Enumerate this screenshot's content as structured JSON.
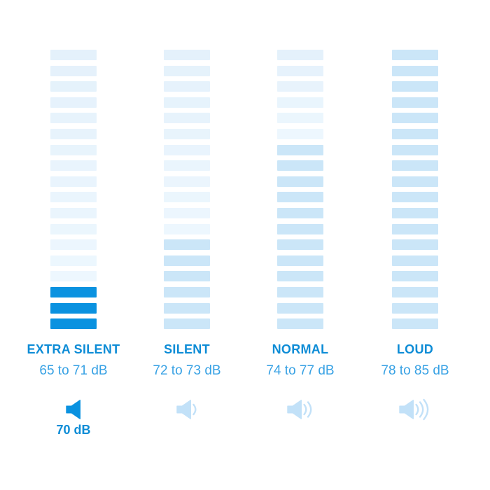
{
  "palette": {
    "background": "#ffffff",
    "bar_light_top": "#e4f1fb",
    "bar_light_bottom": "#edf7fe",
    "bar_medium": "#cbe6f8",
    "bar_bright": "#0a92e0",
    "header_text": "#0d8cd6",
    "range_text": "#37a1e4",
    "db_text": "#0d8cd6",
    "icon_muted": "#c2e1f8",
    "icon_active": "#0a92e0"
  },
  "chart_data": {
    "type": "bar",
    "unit": "dB",
    "bars_per_column": 18,
    "legend_position": "none",
    "columns": [
      {
        "label": "EXTRA SILENT",
        "range_label": "65 to 71 dB",
        "db_min": 65,
        "db_max": 71,
        "segments": [
          {
            "count": 15,
            "tone": "light"
          },
          {
            "count": 3,
            "tone": "bright"
          }
        ],
        "icon": {
          "name": "speaker-0-waves-icon",
          "waves": 0,
          "active": true
        },
        "selected_db_label": "70 dB"
      },
      {
        "label": "SILENT",
        "range_label": "72 to 73 dB",
        "db_min": 72,
        "db_max": 73,
        "segments": [
          {
            "count": 12,
            "tone": "light"
          },
          {
            "count": 6,
            "tone": "medium"
          }
        ],
        "icon": {
          "name": "speaker-1-wave-icon",
          "waves": 1,
          "active": false
        },
        "selected_db_label": null
      },
      {
        "label": "NORMAL",
        "range_label": "74 to 77 dB",
        "db_min": 74,
        "db_max": 77,
        "segments": [
          {
            "count": 6,
            "tone": "light"
          },
          {
            "count": 12,
            "tone": "medium"
          }
        ],
        "icon": {
          "name": "speaker-2-waves-icon",
          "waves": 2,
          "active": false
        },
        "selected_db_label": null
      },
      {
        "label": "LOUD",
        "range_label": "78 to 85 dB",
        "db_min": 78,
        "db_max": 85,
        "segments": [
          {
            "count": 18,
            "tone": "medium"
          }
        ],
        "icon": {
          "name": "speaker-3-waves-icon",
          "waves": 3,
          "active": false
        },
        "selected_db_label": null
      }
    ]
  }
}
